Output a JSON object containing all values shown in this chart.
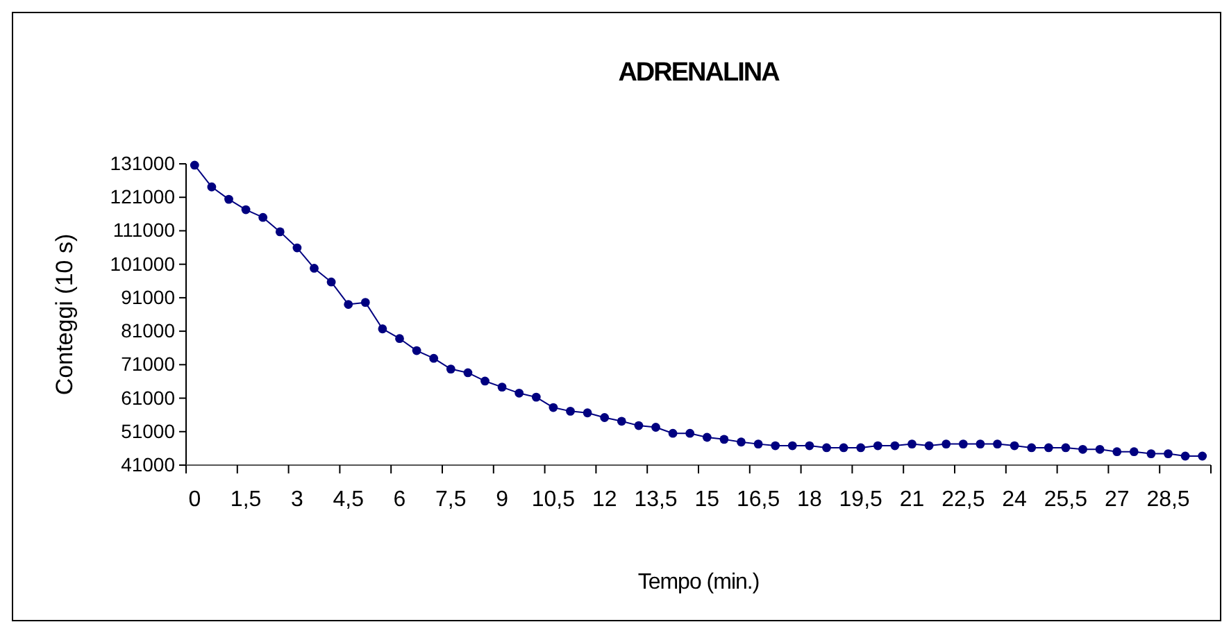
{
  "chart_data": {
    "type": "line",
    "title": "ADRENALINA",
    "xlabel": "Tempo (min.)",
    "ylabel": "Conteggi (10 s)",
    "categories": [
      "0",
      null,
      null,
      "1,5",
      null,
      null,
      "3",
      null,
      null,
      "4,5",
      null,
      null,
      "6",
      null,
      null,
      "7,5",
      null,
      null,
      "9",
      null,
      null,
      "10,5",
      null,
      null,
      "12",
      null,
      null,
      "13,5",
      null,
      null,
      "15",
      null,
      null,
      "16,5",
      null,
      null,
      "18",
      null,
      null,
      "19,5",
      null,
      null,
      "21",
      null,
      null,
      "22,5",
      null,
      null,
      "24",
      null,
      null,
      "25,5",
      null,
      null,
      "27",
      null,
      null,
      "28,5",
      null,
      null
    ],
    "series": [
      {
        "color": "#000080",
        "values": [
          130600,
          124100,
          120400,
          117300,
          115000,
          110700,
          105900,
          99800,
          95700,
          89000,
          89600,
          81700,
          78800,
          75200,
          72900,
          69700,
          68600,
          66100,
          64300,
          62500,
          61300,
          58200,
          57100,
          56600,
          55200,
          54100,
          52800,
          52300,
          50500,
          50500,
          49300,
          48700,
          47900,
          47300,
          46800,
          46800,
          46800,
          46200,
          46200,
          46200,
          46800,
          46800,
          47300,
          46800,
          47300,
          47300,
          47300,
          47300,
          46800,
          46200,
          46200,
          46200,
          45700,
          45700,
          45000,
          45000,
          44400,
          44400,
          43700,
          43700
        ]
      }
    ],
    "ylim": [
      41000,
      131000
    ],
    "yticks": [
      41000,
      51000,
      61000,
      71000,
      81000,
      91000,
      101000,
      111000,
      121000,
      131000
    ],
    "marker": "circle",
    "line_style": "solid",
    "grid": false,
    "legend": false
  }
}
